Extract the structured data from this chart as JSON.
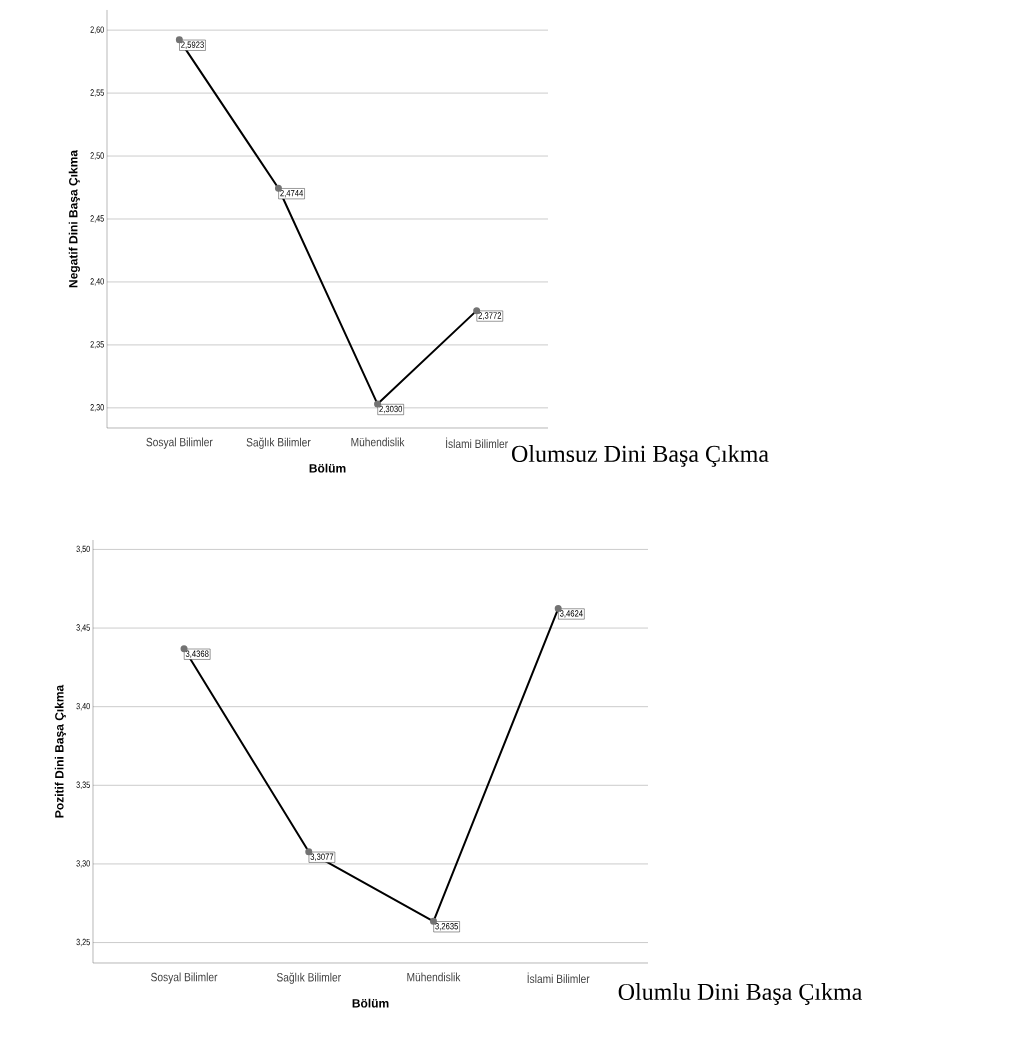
{
  "chart_data": [
    {
      "type": "line",
      "title": "Olumsuz Dini Başa Çıkma",
      "xlabel": "Bölüm",
      "ylabel": "Negatif Dini Başa Çıkma",
      "categories": [
        "Sosyal Bilimler",
        "Sağlık Bilimler",
        "Mühendislik",
        "İslami Bilimler"
      ],
      "series": [
        {
          "color": "#000000",
          "values": [
            2.5923,
            2.4744,
            2.303,
            2.3772
          ],
          "value_labels": [
            "2,5923",
            "2,4744",
            "2,3030",
            "2,3772"
          ]
        }
      ],
      "ylim": [
        2.284,
        2.616
      ],
      "yticks": [
        {
          "value": 2.3,
          "label": "2,30"
        },
        {
          "value": 2.35,
          "label": "2,35"
        },
        {
          "value": 2.4,
          "label": "2,40"
        },
        {
          "value": 2.45,
          "label": "2,45"
        },
        {
          "value": 2.5,
          "label": "2,50"
        },
        {
          "value": 2.55,
          "label": "2,55"
        },
        {
          "value": 2.6,
          "label": "2,60"
        }
      ],
      "grid": "y",
      "marker": "circle",
      "line_style": "solid"
    },
    {
      "type": "line",
      "title": "Olumlu Dini Başa Çıkma",
      "xlabel": "Bölüm",
      "ylabel": "Pozitif Dini Başa Çıkma",
      "categories": [
        "Sosyal Bilimler",
        "Sağlık Bilimler",
        "Mühendislik",
        "İslami Bilimler"
      ],
      "series": [
        {
          "color": "#000000",
          "values": [
            3.4368,
            3.3077,
            3.2635,
            3.4624
          ],
          "value_labels": [
            "3,4368",
            "3,3077",
            "3,2635",
            "3,4624"
          ]
        }
      ],
      "ylim": [
        3.237,
        3.506
      ],
      "yticks": [
        {
          "value": 3.25,
          "label": "3,25"
        },
        {
          "value": 3.3,
          "label": "3,30"
        },
        {
          "value": 3.35,
          "label": "3,35"
        },
        {
          "value": 3.4,
          "label": "3,40"
        },
        {
          "value": 3.45,
          "label": "3,45"
        },
        {
          "value": 3.5,
          "label": "3,50"
        }
      ],
      "grid": "y",
      "marker": "circle",
      "line_style": "solid"
    }
  ]
}
